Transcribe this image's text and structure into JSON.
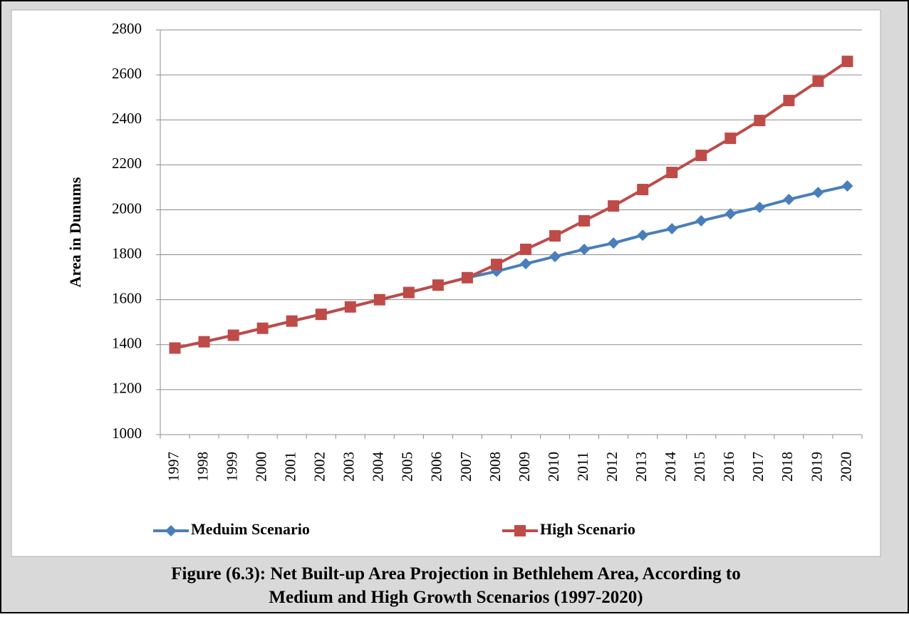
{
  "chart_data": {
    "type": "line",
    "y_label": "Area in Dunums",
    "categories": [
      "1997",
      "1998",
      "1999",
      "2000",
      "2001",
      "2002",
      "2003",
      "2004",
      "2005",
      "2006",
      "2007",
      "2008",
      "2009",
      "2010",
      "2011",
      "2012",
      "2013",
      "2014",
      "2015",
      "2016",
      "2017",
      "2018",
      "2019",
      "2020"
    ],
    "series": [
      {
        "name": "Meduim Scenario",
        "color": "#4a7ebb",
        "marker": "diamond",
        "values": [
          1385,
          1413,
          1442,
          1473,
          1505,
          1535,
          1568,
          1600,
          1632,
          1665,
          1698,
          1726,
          1760,
          1792,
          1824,
          1852,
          1887,
          1916,
          1951,
          1982,
          2011,
          2046,
          2077,
          2106
        ]
      },
      {
        "name": "High Scenario",
        "color": "#be4b48",
        "marker": "square",
        "values": [
          1385,
          1413,
          1442,
          1473,
          1505,
          1535,
          1568,
          1600,
          1632,
          1665,
          1698,
          1757,
          1824,
          1884,
          1951,
          2017,
          2090,
          2166,
          2242,
          2318,
          2397,
          2486,
          2572,
          2660
        ]
      }
    ],
    "ylim": [
      1000,
      2800
    ],
    "yticks": [
      1000,
      1200,
      1400,
      1600,
      1800,
      2000,
      2200,
      2400,
      2600,
      2800
    ],
    "grid": true,
    "legend": "bottom"
  },
  "caption": [
    "Figure (6.3): Net Built-up Area Projection in Bethlehem Area, According to",
    "Medium and High Growth Scenarios (1997-2020)"
  ]
}
